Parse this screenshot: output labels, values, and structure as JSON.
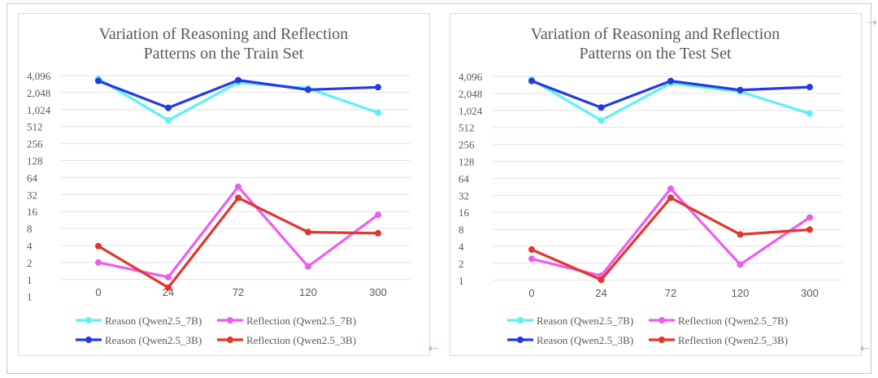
{
  "charts": [
    {
      "type": "line",
      "title_line1": "Variation of Reasoning and Reflection",
      "title_line2": "Patterns on the Train Set",
      "x_categories": [
        "0",
        "24",
        "72",
        "120",
        "300"
      ],
      "y_scale": "log2",
      "y_ticks": [
        "1",
        "1",
        "2",
        "4",
        "8",
        "16",
        "32",
        "64",
        "128",
        "256",
        "512",
        "1,024",
        "2,048",
        "4,096"
      ],
      "series": [
        {
          "name": "Reason (Qwen2.5_7B)",
          "color": "#5ff0f5",
          "values": [
            3600,
            660,
            3100,
            2450,
            900
          ]
        },
        {
          "name": "Reflection (Qwen2.5_7B)",
          "color": "#ee5bf0",
          "values": [
            2,
            1.1,
            44,
            1.7,
            14
          ]
        },
        {
          "name": "Reason (Qwen2.5_3B)",
          "color": "#2439e6",
          "values": [
            3300,
            1100,
            3400,
            2300,
            2550
          ]
        },
        {
          "name": "Reflection (Qwen2.5_3B)",
          "color": "#e2352c",
          "values": [
            3.9,
            0.72,
            28,
            6.9,
            6.6
          ]
        }
      ]
    },
    {
      "type": "line",
      "title_line1": "Variation of Reasoning and Reflection",
      "title_line2": "Patterns on the Test Set",
      "x_categories": [
        "0",
        "24",
        "72",
        "120",
        "300"
      ],
      "y_scale": "log2",
      "y_ticks": [
        "1",
        "2",
        "4",
        "8",
        "16",
        "32",
        "64",
        "128",
        "256",
        "512",
        "1,024",
        "2,048",
        "4,096"
      ],
      "series": [
        {
          "name": "Reason (Qwen2.5_7B)",
          "color": "#5ff0f5",
          "values": [
            3600,
            680,
            3100,
            2200,
            900
          ]
        },
        {
          "name": "Reflection (Qwen2.5_7B)",
          "color": "#ee5bf0",
          "values": [
            2.4,
            1.2,
            42,
            1.9,
            13
          ]
        },
        {
          "name": "Reason (Qwen2.5_3B)",
          "color": "#2439e6",
          "values": [
            3400,
            1150,
            3400,
            2350,
            2650
          ]
        },
        {
          "name": "Reflection (Qwen2.5_3B)",
          "color": "#e2352c",
          "values": [
            3.5,
            1.02,
            29,
            6.5,
            7.9
          ]
        }
      ]
    }
  ],
  "chart_data": [
    {
      "type": "line",
      "title": "Variation of Reasoning and Reflection Patterns on the Train Set",
      "xlabel": "",
      "ylabel": "",
      "categories": [
        "0",
        "24",
        "72",
        "120",
        "300"
      ],
      "y_scale": "log2",
      "ylim": [
        1,
        4096
      ],
      "grid": true,
      "legend": "bottom",
      "series": [
        {
          "name": "Reason (Qwen2.5_7B)",
          "values": [
            3600,
            660,
            3100,
            2450,
            900
          ]
        },
        {
          "name": "Reflection (Qwen2.5_7B)",
          "values": [
            2,
            1.1,
            44,
            1.7,
            14
          ]
        },
        {
          "name": "Reason (Qwen2.5_3B)",
          "values": [
            3300,
            1100,
            3400,
            2300,
            2550
          ]
        },
        {
          "name": "Reflection (Qwen2.5_3B)",
          "values": [
            3.9,
            0.72,
            28,
            6.9,
            6.6
          ]
        }
      ]
    },
    {
      "type": "line",
      "title": "Variation of Reasoning and Reflection Patterns on the Test Set",
      "xlabel": "",
      "ylabel": "",
      "categories": [
        "0",
        "24",
        "72",
        "120",
        "300"
      ],
      "y_scale": "log2",
      "ylim": [
        1,
        4096
      ],
      "grid": true,
      "legend": "bottom",
      "series": [
        {
          "name": "Reason (Qwen2.5_7B)",
          "values": [
            3600,
            680,
            3100,
            2200,
            900
          ]
        },
        {
          "name": "Reflection (Qwen2.5_7B)",
          "values": [
            2.4,
            1.2,
            42,
            1.9,
            13
          ]
        },
        {
          "name": "Reason (Qwen2.5_3B)",
          "values": [
            3400,
            1150,
            3400,
            2350,
            2650
          ]
        },
        {
          "name": "Reflection (Qwen2.5_3B)",
          "values": [
            3.5,
            1.02,
            29,
            6.5,
            7.9
          ]
        }
      ]
    }
  ]
}
